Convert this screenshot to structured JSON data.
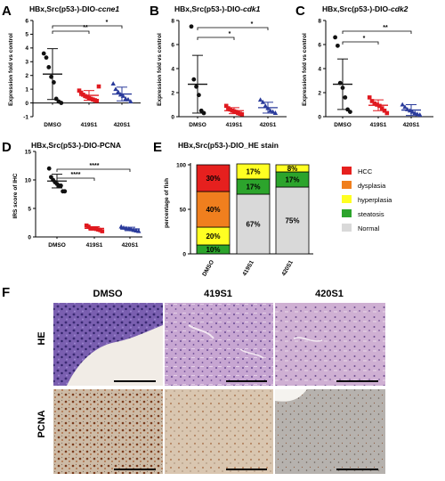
{
  "colors": {
    "dmso": "#111111",
    "s419": "#e0191f",
    "s420": "#2a3b9b",
    "hcc": "#e6201e",
    "dysplasia": "#f07f1e",
    "hyperplasia": "#ffff22",
    "steatosis": "#2ca42c",
    "normal": "#d9d9d9"
  },
  "panels": {
    "A": {
      "letter": "A",
      "title_main": "HBx,Src(p53-)-DIO-",
      "title_gene": "ccne1",
      "ylabel": "Expression fold vs control",
      "sig": [
        "**",
        "*"
      ]
    },
    "B": {
      "letter": "B",
      "title_main": "HBx,Src(p53-)-DIO-",
      "title_gene": "cdk1",
      "ylabel": "Expression fold vs control",
      "sig": [
        "*",
        "*"
      ]
    },
    "C": {
      "letter": "C",
      "title_main": "HBx,Src(p53-)-DIO-",
      "title_gene": "cdk2",
      "ylabel": "Expression fold vs control",
      "sig": [
        "*",
        "**"
      ]
    },
    "D": {
      "letter": "D",
      "title": "HBx,Src(p53-)-DIO-PCNA",
      "ylabel": "IRS score of IHC",
      "sig": [
        "****",
        "****"
      ]
    },
    "E": {
      "letter": "E",
      "title": "HBx,Src(p53-)-DIO_HE stain",
      "ylabel": "percentage of fish"
    },
    "F": {
      "letter": "F",
      "columns": [
        "DMSO",
        "419S1",
        "420S1"
      ],
      "rows": [
        "HE",
        "PCNA"
      ]
    }
  },
  "chart_data": [
    {
      "id": "A",
      "type": "scatter",
      "categories": [
        "DMSO",
        "419S1",
        "420S1"
      ],
      "ylim": [
        -1,
        6
      ],
      "yticks": [
        -1,
        0,
        1,
        2,
        3,
        4,
        5,
        6
      ],
      "points": [
        [
          3.6,
          3.3,
          2.6,
          1.9,
          1.5,
          0.3,
          0.1,
          0.0
        ],
        [
          0.9,
          0.75,
          0.6,
          0.5,
          0.45,
          0.35,
          0.3,
          0.25,
          0.2,
          0.15,
          1.2
        ],
        [
          1.4,
          1.0,
          0.8,
          0.6,
          0.5,
          0.3,
          0.25,
          0.1
        ]
      ],
      "mean": [
        2.1,
        0.55,
        0.65
      ],
      "sd": [
        1.85,
        0.35,
        0.5
      ]
    },
    {
      "id": "B",
      "type": "scatter",
      "categories": [
        "DMSO",
        "419S1",
        "420S1"
      ],
      "ylim": [
        0,
        8
      ],
      "yticks": [
        0,
        2,
        4,
        6,
        8
      ],
      "points": [
        [
          7.5,
          3.1,
          2.5,
          1.8,
          0.5,
          0.3
        ],
        [
          0.9,
          0.7,
          0.6,
          0.5,
          0.45,
          0.4,
          0.3,
          0.25,
          0.2
        ],
        [
          1.4,
          1.2,
          0.9,
          0.7,
          0.5,
          0.4,
          0.3
        ]
      ],
      "mean": [
        2.7,
        0.5,
        0.75
      ],
      "sd": [
        2.4,
        0.25,
        0.45
      ]
    },
    {
      "id": "C",
      "type": "scatter",
      "categories": [
        "DMSO",
        "419S1",
        "420S1"
      ],
      "ylim": [
        0,
        8
      ],
      "yticks": [
        0,
        2,
        4,
        6,
        8
      ],
      "points": [
        [
          6.6,
          5.9,
          2.8,
          2.4,
          1.6,
          0.6,
          0.4
        ],
        [
          1.6,
          1.3,
          1.1,
          1.0,
          0.9,
          0.7,
          0.5,
          0.3
        ],
        [
          1.0,
          0.8,
          0.6,
          0.5,
          0.4,
          0.3,
          0.2,
          0.15
        ]
      ],
      "mean": [
        2.7,
        0.95,
        0.55
      ],
      "sd": [
        2.1,
        0.45,
        0.45
      ]
    },
    {
      "id": "D",
      "type": "scatter",
      "categories": [
        "DMSO",
        "419S1",
        "420S1"
      ],
      "ylim": [
        0,
        15
      ],
      "yticks": [
        0,
        5,
        10,
        15
      ],
      "points": [
        [
          12,
          10.5,
          10,
          9.6,
          9.3,
          9,
          9,
          8,
          8
        ],
        [
          2,
          1.8,
          1.5,
          1.5,
          1.5,
          1.4,
          1.3,
          1.2,
          1.0
        ],
        [
          1.8,
          1.6,
          1.5,
          1.4,
          1.3,
          1.2,
          1.1,
          1.0
        ]
      ],
      "mean": [
        9.8,
        1.5,
        1.4
      ],
      "sd": [
        1.2,
        0.3,
        0.3
      ]
    },
    {
      "id": "E",
      "type": "bar",
      "categories": [
        "DMSO",
        "419S1",
        "420S1"
      ],
      "ylim": [
        0,
        100
      ],
      "yticks": [
        0,
        50,
        100
      ],
      "series": [
        {
          "name": "HCC",
          "values": [
            30,
            0,
            0
          ]
        },
        {
          "name": "dysplasia",
          "values": [
            40,
            0,
            0
          ]
        },
        {
          "name": "hyperplasia",
          "values": [
            20,
            17,
            8
          ]
        },
        {
          "name": "steatosis",
          "values": [
            10,
            17,
            17
          ]
        },
        {
          "name": "Normal",
          "values": [
            0,
            67,
            75
          ]
        }
      ],
      "labels": [
        [
          "30%",
          "40%",
          "20%",
          "10%",
          ""
        ],
        [
          "",
          "",
          "17%",
          "17%",
          "67%"
        ],
        [
          "",
          "",
          "8%",
          "17%",
          "75%"
        ]
      ]
    }
  ]
}
